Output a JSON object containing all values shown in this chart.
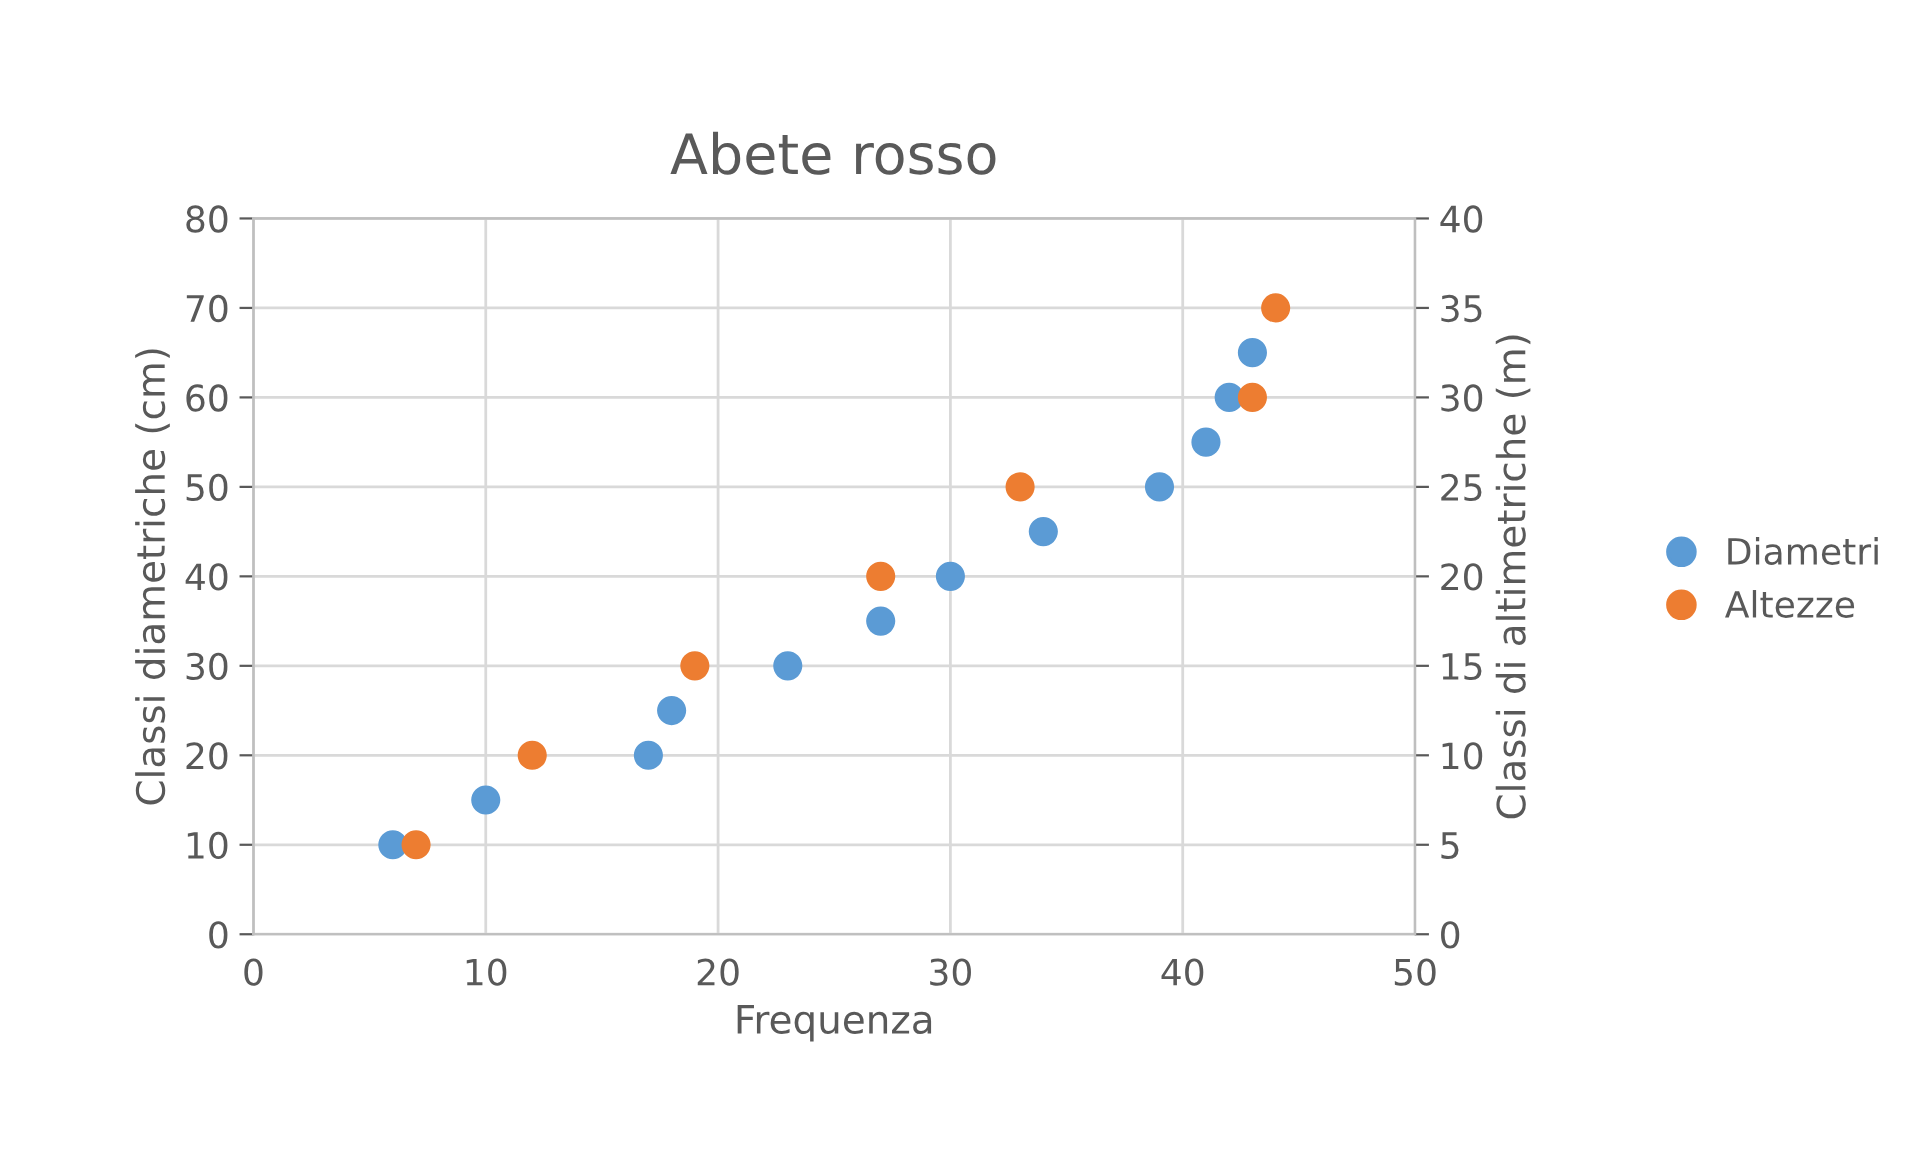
{
  "chart_data": {
    "type": "scatter",
    "title": "Abete rosso",
    "xlabel": "Frequenza",
    "ylabel": "Classi diametriche (cm)",
    "y2label": "Classi di altimetriche (m)",
    "xlim": [
      0,
      50
    ],
    "xticks": [
      0,
      10,
      20,
      30,
      40,
      50
    ],
    "ylim": [
      0,
      80
    ],
    "yticks": [
      0,
      10,
      20,
      30,
      40,
      50,
      60,
      70,
      80
    ],
    "y2lim": [
      0,
      40
    ],
    "y2ticks": [
      0,
      5,
      10,
      15,
      20,
      25,
      30,
      35,
      40
    ],
    "grid": true,
    "legend": "right",
    "marker": "circle",
    "series": [
      {
        "name": "Diametri",
        "color": "#5b9bd5",
        "x": [
          6,
          10,
          17,
          18,
          23,
          27,
          30,
          34,
          39,
          41,
          42,
          43
        ],
        "values": [
          10,
          15,
          20,
          25,
          30,
          35,
          40,
          45,
          50,
          55,
          60,
          65
        ]
      },
      {
        "name": "Altezze",
        "color": "#ed7d31",
        "axis": "y2",
        "x": [
          7,
          12,
          19,
          27,
          33,
          43,
          44
        ],
        "values": [
          5,
          10,
          15,
          20,
          25,
          30,
          35
        ]
      }
    ]
  }
}
